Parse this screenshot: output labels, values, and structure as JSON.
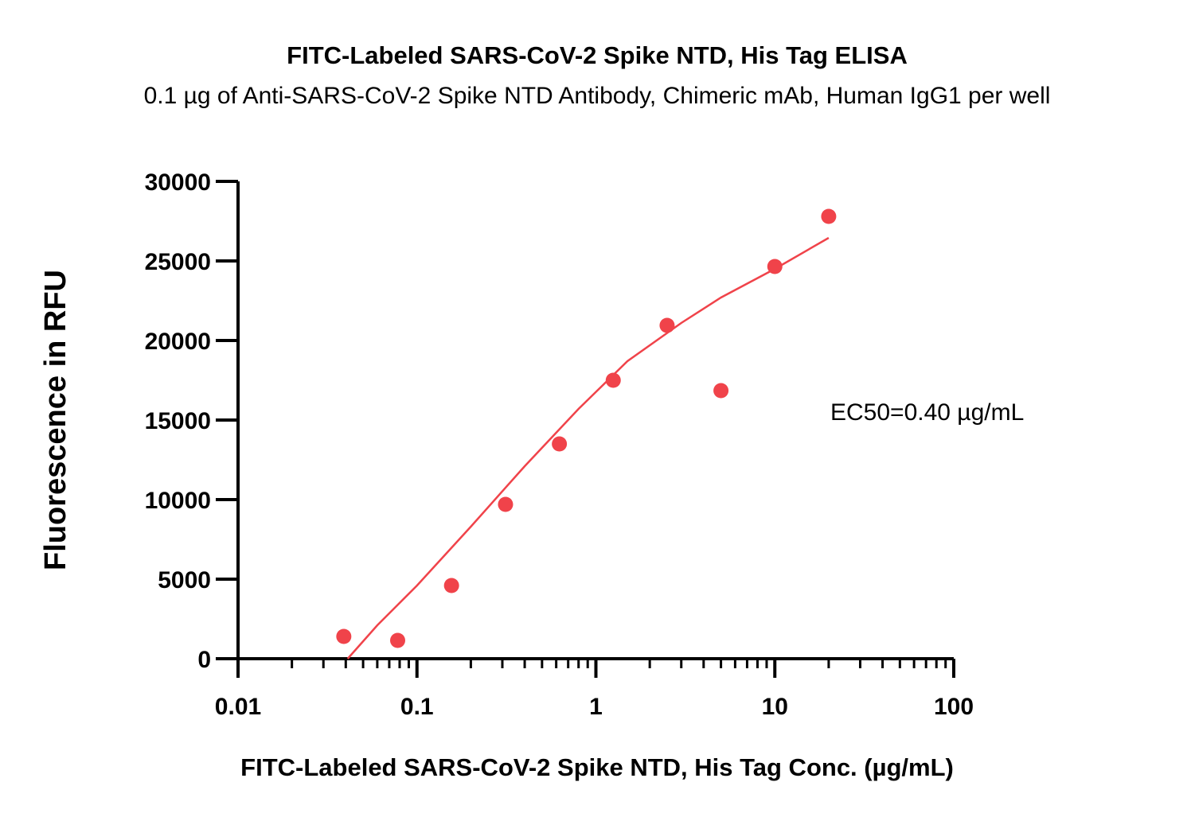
{
  "chart_data": {
    "type": "scatter",
    "title": "FITC-Labeled SARS-CoV-2 Spike NTD, His Tag ELISA",
    "subtitle": "0.1 µg of Anti-SARS-CoV-2 Spike NTD Antibody, Chimeric mAb, Human IgG1 per well",
    "xlabel": "FITC-Labeled SARS-CoV-2 Spike NTD, His Tag Conc. (µg/mL)",
    "ylabel": "Fluorescence in RFU",
    "x_scale": "log",
    "xlim": [
      0.01,
      100
    ],
    "ylim": [
      0,
      30000
    ],
    "x_ticks": [
      0.01,
      0.1,
      1,
      10,
      100
    ],
    "x_tick_labels": [
      "0.01",
      "0.1",
      "1",
      "10",
      "100"
    ],
    "y_ticks": [
      0,
      5000,
      10000,
      15000,
      20000,
      25000,
      30000
    ],
    "y_tick_labels": [
      "0",
      "5000",
      "10000",
      "15000",
      "20000",
      "25000",
      "30000"
    ],
    "series": [
      {
        "color": "#f0434a",
        "points": [
          {
            "x": 0.039,
            "y": 1400
          },
          {
            "x": 0.078,
            "y": 1150
          },
          {
            "x": 0.156,
            "y": 4600
          },
          {
            "x": 0.3125,
            "y": 9700
          },
          {
            "x": 0.625,
            "y": 13500
          },
          {
            "x": 1.25,
            "y": 17500
          },
          {
            "x": 2.5,
            "y": 20950
          },
          {
            "x": 5,
            "y": 16850
          },
          {
            "x": 10,
            "y": 24650
          },
          {
            "x": 20,
            "y": 27800
          }
        ],
        "fit_curve": [
          {
            "x": 0.041,
            "y": 0
          },
          {
            "x": 0.06,
            "y": 2100
          },
          {
            "x": 0.1,
            "y": 4600
          },
          {
            "x": 0.2,
            "y": 8300
          },
          {
            "x": 0.4,
            "y": 12100
          },
          {
            "x": 0.8,
            "y": 15700
          },
          {
            "x": 1.5,
            "y": 18700
          },
          {
            "x": 3,
            "y": 21100
          },
          {
            "x": 5,
            "y": 22700
          },
          {
            "x": 10,
            "y": 24500
          },
          {
            "x": 20,
            "y": 26450
          }
        ]
      }
    ],
    "annotations": [
      "EC50=0.40 µg/mL"
    ],
    "grid": false,
    "legend": "none"
  }
}
